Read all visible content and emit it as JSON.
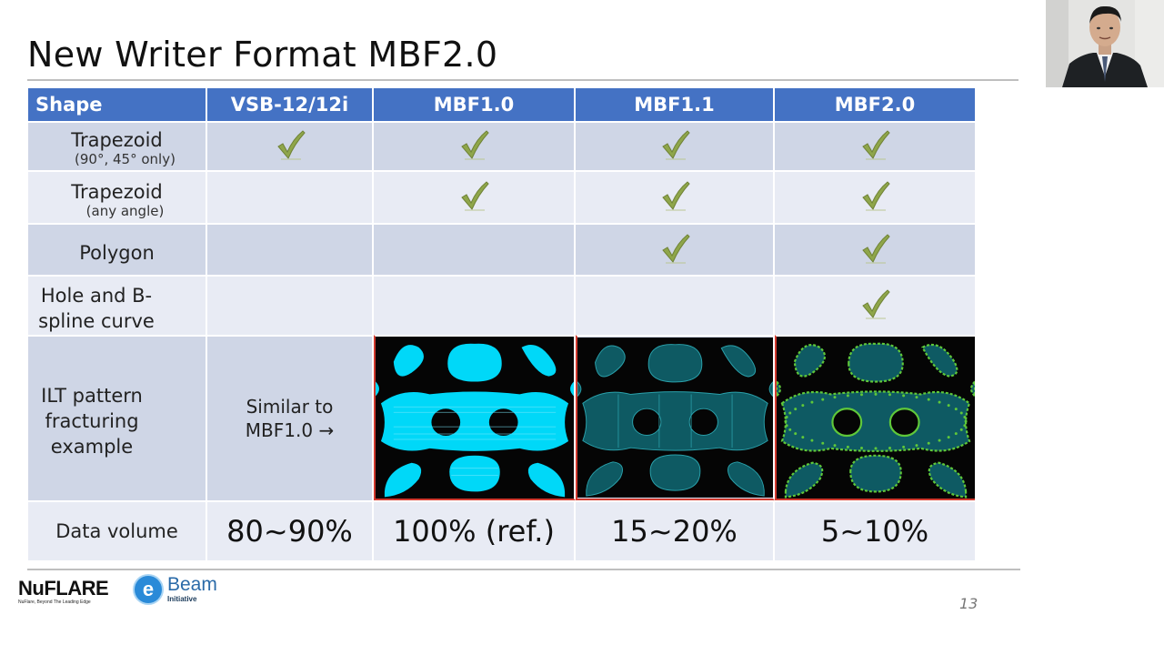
{
  "title": "New Writer Format MBF2.0",
  "table": {
    "headers": [
      "Shape",
      "VSB-12/12i",
      "MBF1.0",
      "MBF1.1",
      "MBF2.0"
    ],
    "rows": [
      {
        "label": "Trapezoid",
        "sub": "(90°, 45° only)",
        "checks": [
          true,
          true,
          true,
          true
        ]
      },
      {
        "label": "Trapezoid",
        "sub": "(any angle)",
        "checks": [
          false,
          true,
          true,
          true
        ]
      },
      {
        "label": "Polygon",
        "sub": "",
        "checks": [
          false,
          false,
          true,
          true
        ]
      },
      {
        "label": "Hole and B-spline curve",
        "sub": "",
        "checks": [
          false,
          false,
          false,
          true
        ]
      }
    ],
    "ilt_label": "ILT pattern fracturing example",
    "similar_text": "Similar to MBF1.0 →",
    "data_volume_label": "Data volume",
    "data_volume": [
      "80~90%",
      "100% (ref.)",
      "15~20%",
      "5~10%"
    ]
  },
  "logos": {
    "nuflare": "NuFLARE",
    "nuflare_tagline": "NuFlare, Beyond The Leading Edge",
    "ebeam": "Beam",
    "ebeam_sub": "Initiative",
    "ebeam_letter": "e"
  },
  "page_number": "13",
  "colors": {
    "header": "#4472c4",
    "row_dark": "#cfd6e6",
    "row_light": "#e8ebf4",
    "check": "#8fa64a",
    "pattern_border": "#d23a2f",
    "pattern_cyan": "#00d8f8",
    "pattern_teal": "#0e5a63",
    "pattern_green": "#5fc83a"
  },
  "icons": {
    "check": "checkmark-icon"
  }
}
